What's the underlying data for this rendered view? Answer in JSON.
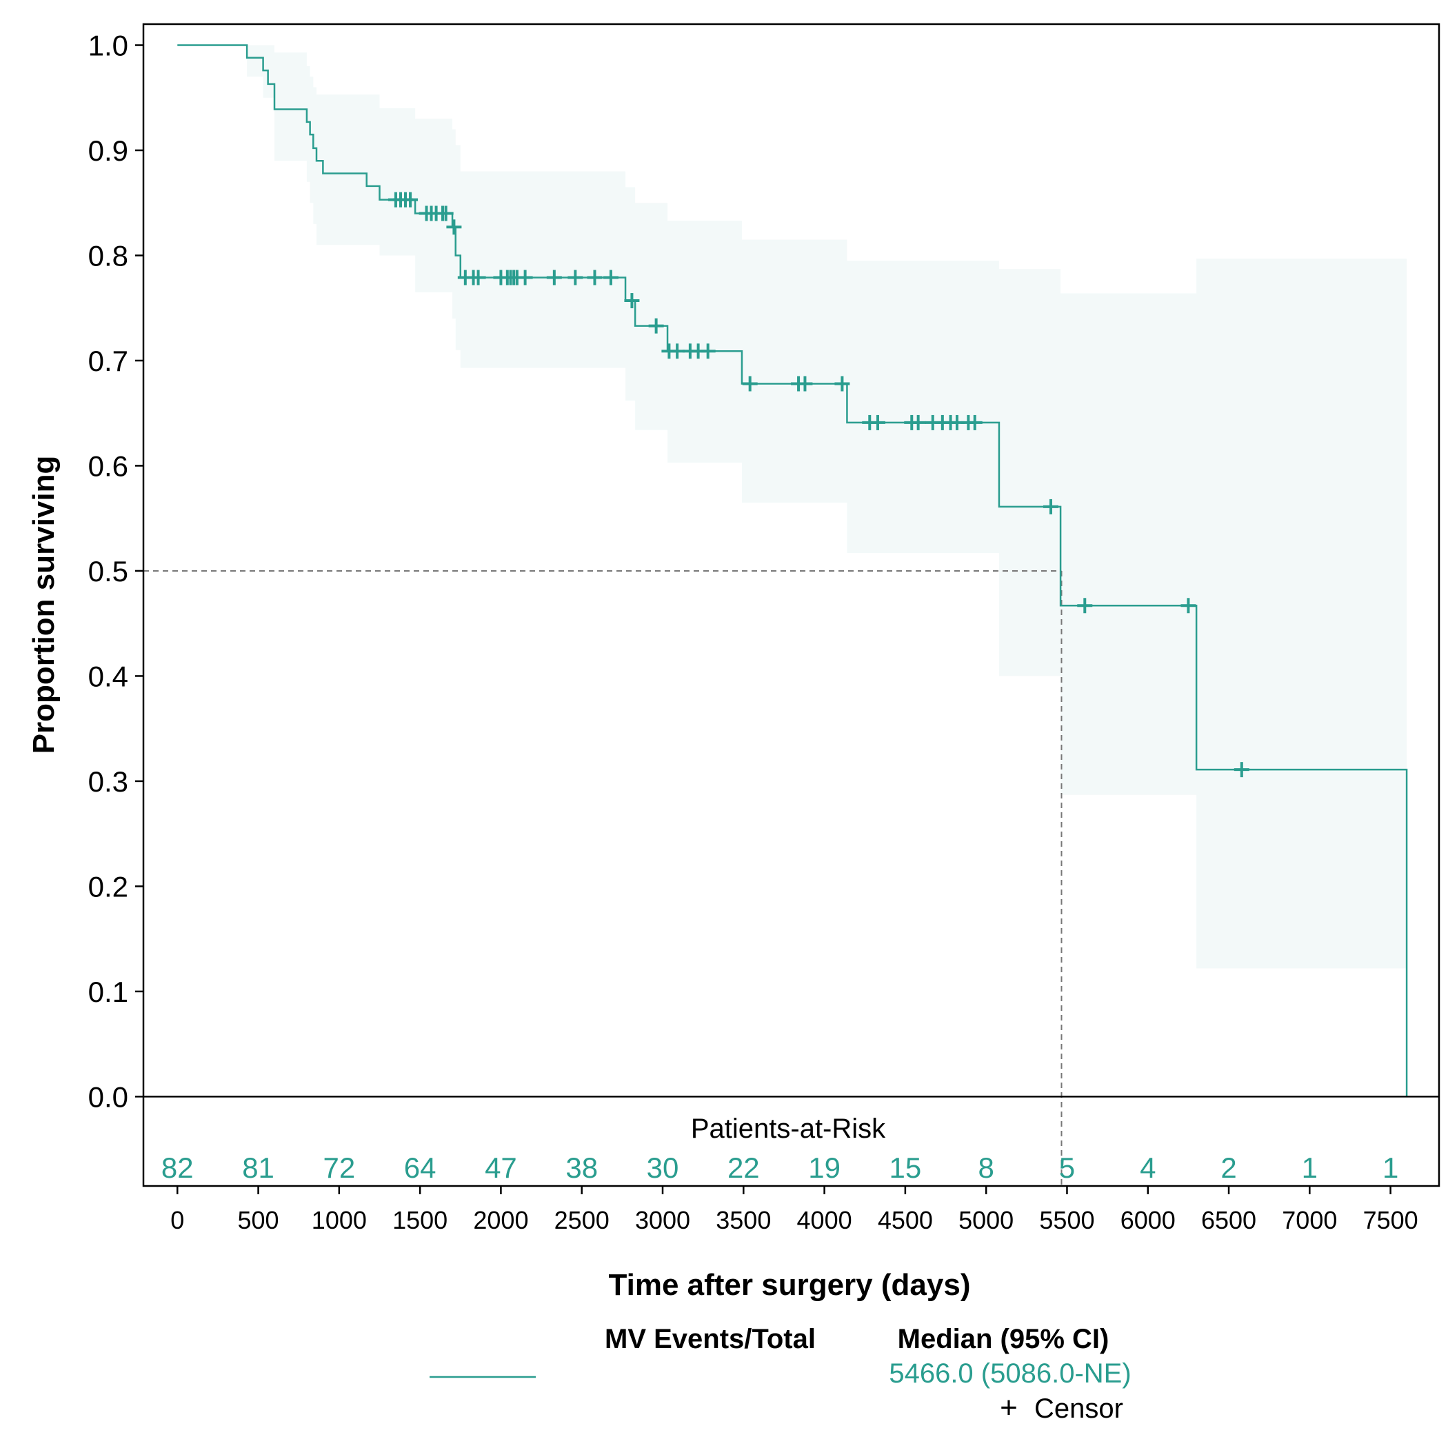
{
  "colors": {
    "series": "#2a9d8f",
    "band": "#f3f9f9",
    "axis": "#000000",
    "reference": "#777777"
  },
  "chart_data": {
    "type": "line",
    "subtype": "kaplan-meier survival curve",
    "xlabel": "Time after surgery (days)",
    "ylabel": "Proportion surviving",
    "xlim": [
      -210,
      7800
    ],
    "ylim": [
      -0.085,
      1.02
    ],
    "x_ticks": [
      0,
      500,
      1000,
      1500,
      2000,
      2500,
      3000,
      3500,
      4000,
      4500,
      5000,
      5500,
      6000,
      6500,
      7000,
      7500
    ],
    "x_tick_labels": [
      "0",
      "500",
      "1000",
      "1500",
      "2000",
      "2500",
      "3000",
      "3500",
      "4000",
      "4500",
      "5000",
      "5500",
      "6000",
      "6500",
      "7000",
      "7500"
    ],
    "y_ticks": [
      0.0,
      0.1,
      0.2,
      0.3,
      0.4,
      0.5,
      0.6,
      0.7,
      0.8,
      0.9,
      1.0
    ],
    "y_tick_labels": [
      "0.0",
      "0.1",
      "0.2",
      "0.3",
      "0.4",
      "0.5",
      "0.6",
      "0.7",
      "0.8",
      "0.9",
      "1.0"
    ],
    "grid": false,
    "survival_steps": [
      [
        0,
        1.0
      ],
      [
        430,
        0.988
      ],
      [
        530,
        0.976
      ],
      [
        560,
        0.963
      ],
      [
        600,
        0.939
      ],
      [
        800,
        0.927
      ],
      [
        820,
        0.915
      ],
      [
        840,
        0.902
      ],
      [
        860,
        0.89
      ],
      [
        900,
        0.878
      ],
      [
        1170,
        0.866
      ],
      [
        1250,
        0.853
      ],
      [
        1470,
        0.84
      ],
      [
        1700,
        0.827
      ],
      [
        1720,
        0.8
      ],
      [
        1750,
        0.779
      ],
      [
        2770,
        0.757
      ],
      [
        2830,
        0.733
      ],
      [
        3030,
        0.709
      ],
      [
        3490,
        0.678
      ],
      [
        4140,
        0.641
      ],
      [
        5080,
        0.561
      ],
      [
        5460,
        0.467
      ],
      [
        6300,
        0.311
      ],
      [
        7600,
        0.0
      ]
    ],
    "survival_end": 7600,
    "ci_steps": [
      [
        0,
        1.0,
        1.0
      ],
      [
        430,
        1.0,
        0.97
      ],
      [
        530,
        1.0,
        0.95
      ],
      [
        600,
        0.993,
        0.89
      ],
      [
        800,
        0.98,
        0.87
      ],
      [
        820,
        0.97,
        0.85
      ],
      [
        840,
        0.96,
        0.83
      ],
      [
        860,
        0.953,
        0.81
      ],
      [
        1250,
        0.94,
        0.8
      ],
      [
        1470,
        0.93,
        0.765
      ],
      [
        1700,
        0.92,
        0.74
      ],
      [
        1720,
        0.905,
        0.71
      ],
      [
        1750,
        0.88,
        0.693
      ],
      [
        2770,
        0.865,
        0.662
      ],
      [
        2830,
        0.85,
        0.634
      ],
      [
        3030,
        0.833,
        0.603
      ],
      [
        3490,
        0.815,
        0.565
      ],
      [
        4140,
        0.795,
        0.517
      ],
      [
        5080,
        0.787,
        0.4
      ],
      [
        5460,
        0.764,
        0.287
      ],
      [
        6300,
        0.797,
        0.122
      ]
    ],
    "ci_end": 7600,
    "censor_times": [
      1350,
      1380,
      1410,
      1440,
      1540,
      1570,
      1600,
      1640,
      1660,
      1710,
      1780,
      1830,
      1860,
      2000,
      2040,
      2060,
      2080,
      2100,
      2150,
      2330,
      2460,
      2580,
      2680,
      2810,
      2960,
      3040,
      3090,
      3170,
      3220,
      3280,
      3540,
      3840,
      3880,
      4110,
      4280,
      4330,
      4540,
      4580,
      4670,
      4730,
      4780,
      4820,
      4890,
      4930,
      5400,
      5610,
      6250,
      6580
    ],
    "median": {
      "x": 5466.0,
      "y": 0.5
    },
    "risk_table": {
      "title": "Patients-at-Risk",
      "times": [
        0,
        500,
        1000,
        1500,
        2000,
        2500,
        3000,
        3500,
        4000,
        4500,
        5000,
        5500,
        6000,
        6500,
        7000,
        7500
      ],
      "counts": [
        "82",
        "81",
        "72",
        "64",
        "47",
        "38",
        "30",
        "22",
        "19",
        "15",
        "8",
        "5",
        "4",
        "2",
        "1",
        "1"
      ]
    }
  },
  "legend": {
    "col1_header": "MV Events/Total",
    "col2_header": "Median (95% CI)",
    "median_value": "5466.0 (5086.0-NE)",
    "censor_symbol": "+",
    "censor_label": "Censor"
  }
}
